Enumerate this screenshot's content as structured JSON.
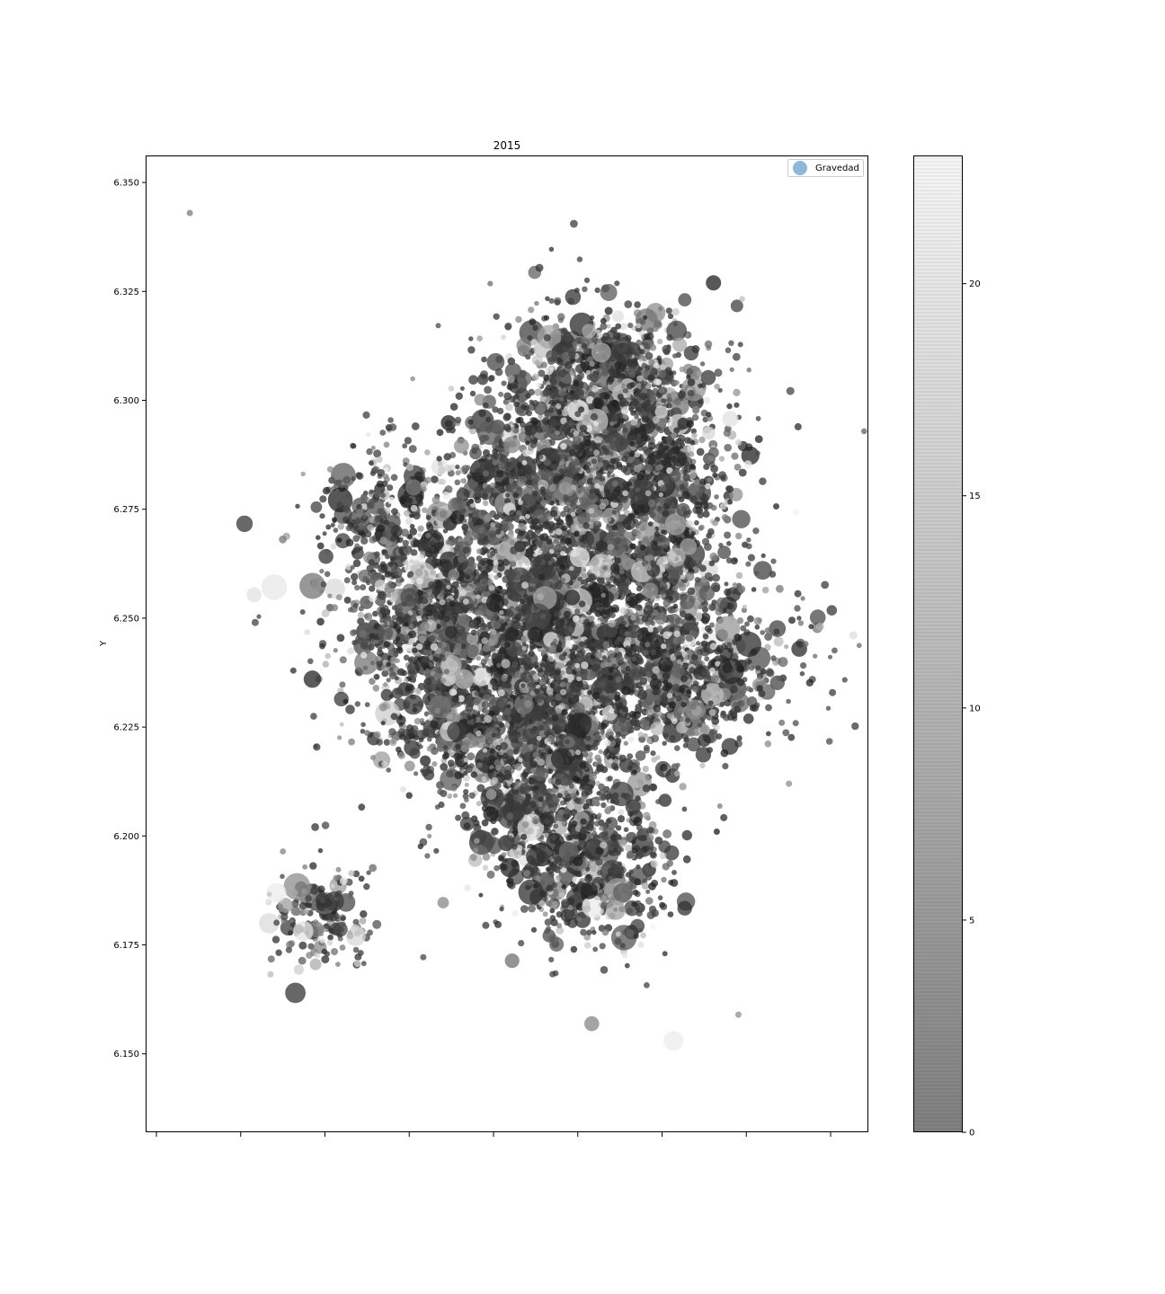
{
  "chart_data": {
    "type": "scatter",
    "title": "2015",
    "xlabel": "",
    "ylabel": "Y",
    "ylim": [
      6.132,
      6.356
    ],
    "y_ticks": [
      "6.350",
      "6.325",
      "6.300",
      "6.275",
      "6.250",
      "6.225",
      "6.200",
      "6.175",
      "6.150"
    ],
    "x_tick_count": 9,
    "x_tick_labels_visible": false,
    "grid": false,
    "legend": {
      "label": "Gravedad",
      "placement": "top-right",
      "marker_color": "#8db8d9"
    },
    "colorbar": {
      "range": [
        0,
        23
      ],
      "ticks": [
        "20",
        "15",
        "10",
        "5",
        "0"
      ],
      "colormap": "gray (dark to light)",
      "color_low": "#808080",
      "color_high": "#f7f7f7"
    },
    "marker_color_low": "#1e1e1e",
    "marker_color_high": "#f5f5f5",
    "marker_alpha": 0.75,
    "size_field": "Gravedad",
    "notable_points": [
      {
        "x": 0.06,
        "y": 6.343,
        "gravedad": 10,
        "size": 1
      },
      {
        "x": 0.18,
        "y": 6.187,
        "gravedad": 22,
        "size": 4
      },
      {
        "x": 0.26,
        "y": 6.185,
        "gravedad": 3,
        "size": 4
      },
      {
        "x": 0.29,
        "y": 6.177,
        "gravedad": 20,
        "size": 4
      },
      {
        "x": 0.37,
        "y": 6.28,
        "gravedad": 10,
        "size": 3
      },
      {
        "x": 0.42,
        "y": 6.224,
        "gravedad": 19,
        "size": 4
      },
      {
        "x": 0.43,
        "y": 6.224,
        "gravedad": 3,
        "size": 4
      },
      {
        "x": 0.44,
        "y": 6.236,
        "gravedad": 16,
        "size": 4
      },
      {
        "x": 0.58,
        "y": 6.248,
        "gravedad": 2,
        "size": 4
      },
      {
        "x": 0.6,
        "y": 6.264,
        "gravedad": 21,
        "size": 4
      },
      {
        "x": 0.63,
        "y": 6.311,
        "gravedad": 15,
        "size": 4
      },
      {
        "x": 0.66,
        "y": 6.311,
        "gravedad": 3,
        "size": 4
      },
      {
        "x": 0.66,
        "y": 6.187,
        "gravedad": 7,
        "size": 4
      },
      {
        "x": 0.65,
        "y": 6.183,
        "gravedad": 14,
        "size": 4
      },
      {
        "x": 0.73,
        "y": 6.153,
        "gravedad": 22,
        "size": 4
      },
      {
        "x": 0.76,
        "y": 6.229,
        "gravedad": 12,
        "size": 4
      },
      {
        "x": 0.79,
        "y": 6.201,
        "gravedad": 0,
        "size": 1
      },
      {
        "x": 0.82,
        "y": 6.159,
        "gravedad": 12,
        "size": 1
      },
      {
        "x": 0.88,
        "y": 6.226,
        "gravedad": 8,
        "size": 1
      },
      {
        "x": 0.89,
        "y": 6.212,
        "gravedad": 12,
        "size": 1
      }
    ],
    "cluster_density_note_free": true
  }
}
